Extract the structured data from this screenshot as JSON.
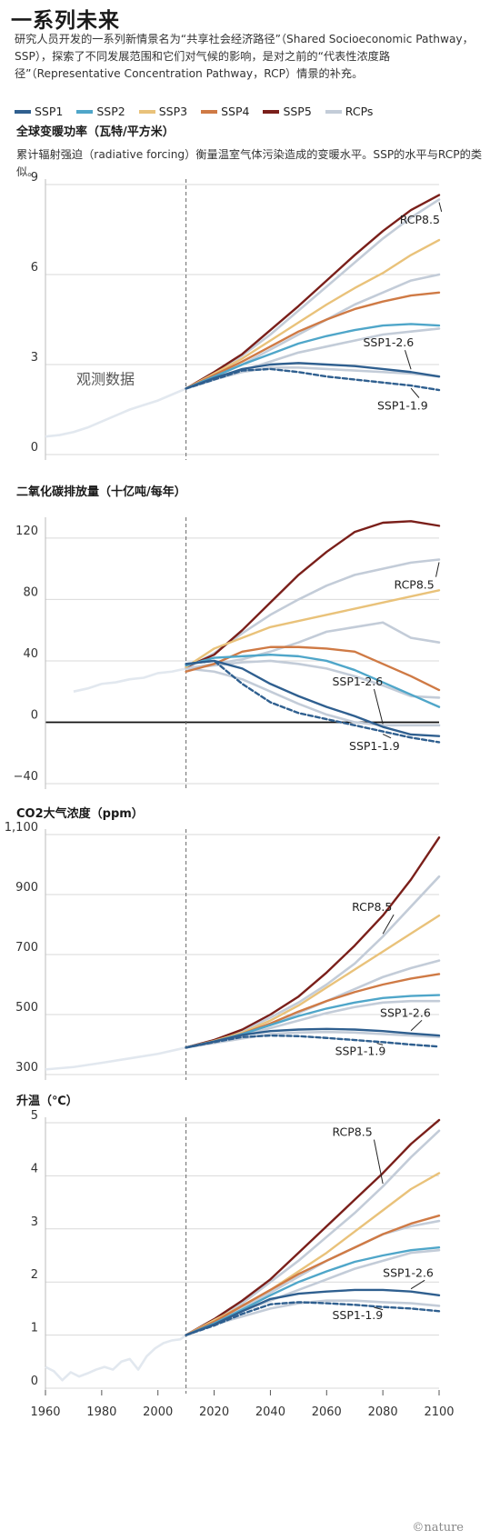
{
  "header": {
    "title": "一系列未来",
    "intro": "研究人员开发的一系列新情景名为“共享社会经济路径”（Shared Socioeconomic Pathway，SSP），探索了不同发展范围和它们对气候的影响，是对之前的“代表性浓度路径”（Representative Concentration Pathway，RCP）情景的补充。"
  },
  "legend": [
    {
      "name": "SSP1",
      "color": "#2f5f8f"
    },
    {
      "name": "SSP2",
      "color": "#4fa6c9"
    },
    {
      "name": "SSP3",
      "color": "#e9c27a"
    },
    {
      "name": "SSP4",
      "color": "#cf7a45"
    },
    {
      "name": "SSP5",
      "color": "#7a1f1a"
    },
    {
      "name": "RCPs",
      "color": "#c3ccd8"
    }
  ],
  "credit": "©nature",
  "chart_data": [
    {
      "type": "line",
      "title": "全球变暖功率（瓦特/平方米）",
      "subtitle": "累计辐射强迫（radiative forcing）衡量温室气体污染造成的变暖水平。SSP的水平与RCP的类似。",
      "xlim": [
        1960,
        2100
      ],
      "ylim": [
        0,
        9
      ],
      "yticks": [
        0,
        3,
        6,
        9
      ],
      "ytick_labels": [
        "0",
        "3",
        "6",
        "9"
      ],
      "x": [
        2010,
        2020,
        2030,
        2040,
        2050,
        2060,
        2070,
        2080,
        2090,
        2100
      ],
      "observed": {
        "label": "观测数据",
        "x": [
          1960,
          1965,
          1970,
          1975,
          1980,
          1985,
          1990,
          1995,
          2000,
          2005,
          2010
        ],
        "values": [
          0.6,
          0.65,
          0.75,
          0.9,
          1.1,
          1.3,
          1.5,
          1.65,
          1.8,
          2.0,
          2.2
        ]
      },
      "series": [
        {
          "name": "RCP8.5",
          "group": "RCPs",
          "values": [
            2.2,
            2.7,
            3.3,
            4.0,
            4.8,
            5.6,
            6.4,
            7.2,
            7.9,
            8.5
          ]
        },
        {
          "group": "RCPs",
          "values": [
            2.2,
            2.6,
            3.0,
            3.5,
            4.0,
            4.5,
            5.0,
            5.4,
            5.8,
            6.0
          ]
        },
        {
          "group": "RCPs",
          "values": [
            2.2,
            2.5,
            2.8,
            3.1,
            3.4,
            3.6,
            3.8,
            4.0,
            4.1,
            4.2
          ]
        },
        {
          "group": "RCPs",
          "values": [
            2.2,
            2.5,
            2.75,
            2.9,
            2.9,
            2.85,
            2.8,
            2.75,
            2.7,
            2.6
          ]
        },
        {
          "name": "SSP5",
          "group": "SSP5",
          "values": [
            2.2,
            2.75,
            3.35,
            4.15,
            4.95,
            5.8,
            6.65,
            7.45,
            8.15,
            8.65
          ]
        },
        {
          "name": "SSP3",
          "group": "SSP3",
          "values": [
            2.2,
            2.7,
            3.2,
            3.8,
            4.4,
            5.0,
            5.55,
            6.05,
            6.65,
            7.15
          ]
        },
        {
          "name": "SSP4",
          "group": "SSP4",
          "values": [
            2.2,
            2.65,
            3.1,
            3.6,
            4.1,
            4.5,
            4.85,
            5.1,
            5.3,
            5.4
          ]
        },
        {
          "name": "SSP2",
          "group": "SSP2",
          "values": [
            2.2,
            2.6,
            3.0,
            3.35,
            3.7,
            3.95,
            4.15,
            4.3,
            4.35,
            4.3
          ]
        },
        {
          "name": "SSP1-2.6",
          "group": "SSP1",
          "values": [
            2.2,
            2.55,
            2.85,
            3.0,
            3.05,
            3.0,
            2.95,
            2.85,
            2.75,
            2.6
          ]
        },
        {
          "name": "SSP1-1.9",
          "group": "SSP1",
          "dashed": true,
          "values": [
            2.2,
            2.5,
            2.8,
            2.85,
            2.75,
            2.6,
            2.5,
            2.4,
            2.3,
            2.15
          ]
        }
      ],
      "annotations": [
        {
          "text": "RCP8.5",
          "x": 2086,
          "y": 7.7
        },
        {
          "text": "SSP1-2.6",
          "x": 2073,
          "y": 3.6
        },
        {
          "text": "SSP1-1.9",
          "x": 2078,
          "y": 1.5
        }
      ]
    },
    {
      "type": "line",
      "title": "二氧化碳排放量（十亿吨/每年）",
      "xlim": [
        1960,
        2100
      ],
      "ylim": [
        -40,
        130
      ],
      "yticks": [
        -40,
        0,
        40,
        80,
        120
      ],
      "ytick_labels": [
        "−40",
        "0",
        "40",
        "80",
        "120"
      ],
      "x": [
        2010,
        2020,
        2030,
        2040,
        2050,
        2060,
        2070,
        2080,
        2090,
        2100
      ],
      "observed": {
        "x": [
          1970,
          1975,
          1980,
          1985,
          1990,
          1995,
          2000,
          2005,
          2010
        ],
        "values": [
          20,
          22,
          25,
          26,
          28,
          29,
          32,
          33,
          35
        ]
      },
      "series": [
        {
          "name": "RCP8.5",
          "group": "RCPs",
          "values": [
            35,
            45,
            58,
            70,
            80,
            89,
            96,
            100,
            104,
            106
          ]
        },
        {
          "group": "RCPs",
          "values": [
            35,
            38,
            41,
            46,
            52,
            59,
            62,
            65,
            55,
            52
          ]
        },
        {
          "group": "RCPs",
          "values": [
            35,
            37,
            39,
            40,
            38,
            35,
            30,
            24,
            17,
            16
          ]
        },
        {
          "group": "RCPs",
          "values": [
            35,
            33,
            28,
            20,
            12,
            5,
            0,
            -2,
            -2,
            -2
          ]
        },
        {
          "name": "SSP5",
          "group": "SSP5",
          "values": [
            36,
            44,
            60,
            78,
            96,
            111,
            124,
            130,
            131,
            128
          ]
        },
        {
          "name": "SSP3",
          "group": "SSP3",
          "values": [
            36,
            48,
            55,
            62,
            66,
            70,
            74,
            78,
            82,
            86
          ]
        },
        {
          "name": "SSP4",
          "group": "SSP4",
          "values": [
            33,
            38,
            46,
            49,
            49,
            48,
            46,
            38,
            30,
            21
          ]
        },
        {
          "name": "SSP2",
          "group": "SSP2",
          "values": [
            37,
            42,
            43,
            44,
            43,
            40,
            34,
            26,
            18,
            10
          ]
        },
        {
          "name": "SSP1-2.6",
          "group": "SSP1",
          "values": [
            38,
            40,
            35,
            25,
            17,
            10,
            4,
            -3,
            -8,
            -9
          ]
        },
        {
          "name": "SSP1-1.9",
          "group": "SSP1",
          "dashed": true,
          "values": [
            38,
            40,
            25,
            13,
            6,
            2,
            -2,
            -6,
            -10,
            -13
          ]
        }
      ],
      "annotations": [
        {
          "text": "RCP8.5",
          "x": 2084,
          "y": 87
        },
        {
          "text": "SSP1-2.6",
          "x": 2062,
          "y": 24
        },
        {
          "text": "SSP1-1.9",
          "x": 2068,
          "y": -18
        }
      ]
    },
    {
      "type": "line",
      "title": "CO2大气浓度（ppm）",
      "xlim": [
        1960,
        2100
      ],
      "ylim": [
        300,
        1100
      ],
      "yticks": [
        300,
        500,
        700,
        900,
        1100
      ],
      "ytick_labels": [
        "300",
        "500",
        "700",
        "900",
        "1,100"
      ],
      "x": [
        2010,
        2020,
        2030,
        2040,
        2050,
        2060,
        2070,
        2080,
        2090,
        2100
      ],
      "observed": {
        "x": [
          1960,
          1970,
          1980,
          1990,
          2000,
          2010
        ],
        "values": [
          317,
          325,
          339,
          354,
          369,
          390
        ]
      },
      "series": [
        {
          "name": "RCP8.5",
          "group": "RCPs",
          "values": [
            390,
            415,
            445,
            490,
            540,
            600,
            670,
            760,
            860,
            960
          ]
        },
        {
          "group": "RCPs",
          "values": [
            390,
            410,
            435,
            465,
            505,
            545,
            585,
            625,
            655,
            680
          ]
        },
        {
          "group": "RCPs",
          "values": [
            390,
            410,
            430,
            455,
            480,
            505,
            525,
            540,
            545,
            545
          ]
        },
        {
          "group": "RCPs",
          "values": [
            390,
            405,
            420,
            435,
            440,
            442,
            440,
            435,
            430,
            425
          ]
        },
        {
          "name": "SSP5",
          "group": "SSP5",
          "values": [
            390,
            415,
            450,
            500,
            560,
            640,
            730,
            830,
            950,
            1090
          ]
        },
        {
          "name": "SSP3",
          "group": "SSP3",
          "values": [
            390,
            412,
            440,
            480,
            530,
            590,
            650,
            710,
            770,
            830
          ]
        },
        {
          "name": "SSP4",
          "group": "SSP4",
          "values": [
            390,
            410,
            436,
            470,
            510,
            545,
            575,
            600,
            620,
            635
          ]
        },
        {
          "name": "SSP2",
          "group": "SSP2",
          "values": [
            390,
            410,
            435,
            465,
            495,
            520,
            540,
            555,
            562,
            565
          ]
        },
        {
          "name": "SSP1-2.6",
          "group": "SSP1",
          "values": [
            390,
            410,
            432,
            445,
            450,
            452,
            450,
            445,
            437,
            430
          ]
        },
        {
          "name": "SSP1-1.9",
          "group": "SSP1",
          "dashed": true,
          "values": [
            390,
            408,
            425,
            430,
            428,
            422,
            415,
            408,
            400,
            393
          ]
        }
      ],
      "annotations": [
        {
          "text": "RCP8.5",
          "x": 2069,
          "y": 845
        },
        {
          "text": "SSP1-2.6",
          "x": 2079,
          "y": 493
        },
        {
          "text": "SSP1-1.9",
          "x": 2063,
          "y": 365
        }
      ]
    },
    {
      "type": "line",
      "title": "升温（℃）",
      "xlim": [
        1960,
        2100
      ],
      "ylim": [
        0,
        5
      ],
      "yticks": [
        0,
        1,
        2,
        3,
        4,
        5
      ],
      "ytick_labels": [
        "0",
        "1",
        "2",
        "3",
        "4",
        "5"
      ],
      "xticks": [
        1960,
        1980,
        2000,
        2020,
        2040,
        2060,
        2080,
        2100
      ],
      "xtick_labels": [
        "1960",
        "1980",
        "2000",
        "2020",
        "2040",
        "2060",
        "2080",
        "2100"
      ],
      "x": [
        2010,
        2020,
        2030,
        2040,
        2050,
        2060,
        2070,
        2080,
        2090,
        2100
      ],
      "observed": {
        "x": [
          1960,
          1963,
          1966,
          1969,
          1972,
          1975,
          1978,
          1981,
          1984,
          1987,
          1990,
          1993,
          1996,
          1999,
          2002,
          2005,
          2008,
          2010
        ],
        "values": [
          0.4,
          0.32,
          0.15,
          0.3,
          0.22,
          0.28,
          0.35,
          0.4,
          0.35,
          0.5,
          0.55,
          0.35,
          0.6,
          0.75,
          0.85,
          0.9,
          0.92,
          1.0
        ]
      },
      "series": [
        {
          "name": "RCP8.5",
          "group": "RCPs",
          "values": [
            1.0,
            1.3,
            1.6,
            2.0,
            2.4,
            2.85,
            3.3,
            3.8,
            4.35,
            4.85
          ]
        },
        {
          "group": "RCPs",
          "values": [
            1.0,
            1.25,
            1.5,
            1.8,
            2.1,
            2.4,
            2.65,
            2.9,
            3.05,
            3.15
          ]
        },
        {
          "group": "RCPs",
          "values": [
            1.0,
            1.2,
            1.45,
            1.65,
            1.85,
            2.05,
            2.25,
            2.4,
            2.55,
            2.6
          ]
        },
        {
          "group": "RCPs",
          "values": [
            1.0,
            1.2,
            1.35,
            1.5,
            1.6,
            1.65,
            1.65,
            1.62,
            1.6,
            1.55
          ]
        },
        {
          "name": "SSP5",
          "group": "SSP5",
          "values": [
            1.0,
            1.3,
            1.65,
            2.05,
            2.55,
            3.05,
            3.55,
            4.05,
            4.6,
            5.05
          ]
        },
        {
          "name": "SSP3",
          "group": "SSP3",
          "values": [
            1.0,
            1.28,
            1.55,
            1.85,
            2.2,
            2.55,
            2.95,
            3.35,
            3.75,
            4.05
          ]
        },
        {
          "name": "SSP4",
          "group": "SSP4",
          "values": [
            1.0,
            1.25,
            1.55,
            1.85,
            2.15,
            2.4,
            2.65,
            2.9,
            3.1,
            3.25
          ]
        },
        {
          "name": "SSP2",
          "group": "SSP2",
          "values": [
            1.0,
            1.22,
            1.48,
            1.75,
            2.0,
            2.2,
            2.38,
            2.5,
            2.6,
            2.65
          ]
        },
        {
          "name": "SSP1-2.6",
          "group": "SSP1",
          "values": [
            1.0,
            1.2,
            1.45,
            1.68,
            1.78,
            1.82,
            1.85,
            1.85,
            1.82,
            1.75
          ]
        },
        {
          "name": "SSP1-1.9",
          "group": "SSP1",
          "dashed": true,
          "values": [
            1.0,
            1.18,
            1.4,
            1.58,
            1.62,
            1.6,
            1.57,
            1.53,
            1.5,
            1.45
          ]
        }
      ],
      "annotations": [
        {
          "text": "RCP8.5",
          "x": 2062,
          "y": 4.75
        },
        {
          "text": "SSP1-2.6",
          "x": 2080,
          "y": 2.1
        },
        {
          "text": "SSP1-1.9",
          "x": 2062,
          "y": 1.3
        }
      ]
    }
  ]
}
